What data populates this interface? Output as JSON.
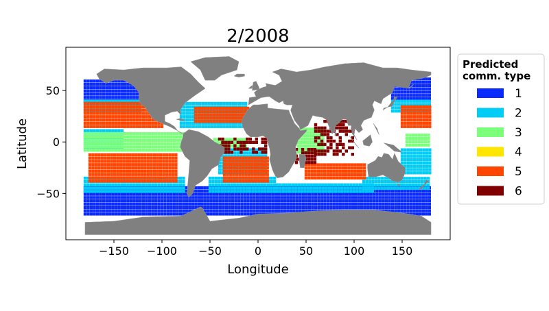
{
  "chart_data": {
    "type": "scatter",
    "title": "2/2008",
    "xlabel": "Longitude",
    "ylabel": "Latitude",
    "xlim": [
      -200,
      200
    ],
    "ylim": [
      -95,
      92
    ],
    "xticks": [
      -150,
      -100,
      -50,
      0,
      50,
      100,
      150
    ],
    "yticks": [
      -50,
      0,
      50
    ],
    "xtick_labels": [
      "−150",
      "−100",
      "−50",
      "0",
      "50",
      "100",
      "150"
    ],
    "ytick_labels": [
      "−50",
      "0",
      "50"
    ],
    "grid": false,
    "background_map": "world land masses in grey",
    "land_color": "#808080",
    "legend": {
      "title_line1": "Predicted",
      "title_line2": "comm. type",
      "placement": "outside-right-top",
      "entries": [
        {
          "label": "1",
          "color": "#0a2bff"
        },
        {
          "label": "2",
          "color": "#00ccf5"
        },
        {
          "label": "3",
          "color": "#7cff7a"
        },
        {
          "label": "4",
          "color": "#ffe600"
        },
        {
          "label": "5",
          "color": "#ff4500"
        },
        {
          "label": "6",
          "color": "#800000"
        }
      ]
    },
    "regions": [
      {
        "type": "1",
        "lon": [
          -180,
          180
        ],
        "lat": [
          -70,
          -42
        ]
      },
      {
        "type": "1",
        "lon": [
          -180,
          -125
        ],
        "lat": [
          40,
          62
        ]
      },
      {
        "type": "1",
        "lon": [
          140,
          180
        ],
        "lat": [
          42,
          62
        ]
      },
      {
        "type": "2",
        "lon": [
          -180,
          -75
        ],
        "lat": [
          -48,
          -35
        ]
      },
      {
        "type": "2",
        "lon": [
          -50,
          20
        ],
        "lat": [
          -48,
          -35
        ]
      },
      {
        "type": "2",
        "lon": [
          20,
          120
        ],
        "lat": [
          -48,
          -40
        ]
      },
      {
        "type": "2",
        "lon": [
          110,
          180
        ],
        "lat": [
          -45,
          -35
        ]
      },
      {
        "type": "2",
        "lon": [
          -180,
          -120
        ],
        "lat": [
          30,
          42
        ]
      },
      {
        "type": "2",
        "lon": [
          140,
          180
        ],
        "lat": [
          30,
          42
        ]
      },
      {
        "type": "2",
        "lon": [
          -80,
          -10
        ],
        "lat": [
          15,
          40
        ]
      },
      {
        "type": "2",
        "lon": [
          -40,
          10
        ],
        "lat": [
          -30,
          -5
        ]
      },
      {
        "type": "2",
        "lon": [
          -180,
          -140
        ],
        "lat": [
          -5,
          12
        ]
      },
      {
        "type": "2",
        "lon": [
          150,
          180
        ],
        "lat": [
          -30,
          -5
        ]
      },
      {
        "type": "3",
        "lon": [
          -180,
          -75
        ],
        "lat": [
          -8,
          10
        ]
      },
      {
        "type": "3",
        "lon": [
          -45,
          -10
        ],
        "lat": [
          -4,
          5
        ]
      },
      {
        "type": "3",
        "lon": [
          155,
          180
        ],
        "lat": [
          -3,
          8
        ]
      },
      {
        "type": "3",
        "lon": [
          42,
          70
        ],
        "lat": [
          -10,
          15
        ]
      },
      {
        "type": "5",
        "lon": [
          -180,
          -100
        ],
        "lat": [
          15,
          38
        ]
      },
      {
        "type": "5",
        "lon": [
          150,
          180
        ],
        "lat": [
          15,
          35
        ]
      },
      {
        "type": "5",
        "lon": [
          -175,
          -85
        ],
        "lat": [
          -38,
          -12
        ]
      },
      {
        "type": "5",
        "lon": [
          -35,
          10
        ],
        "lat": [
          -38,
          -15
        ]
      },
      {
        "type": "5",
        "lon": [
          50,
          112
        ],
        "lat": [
          -35,
          -20
        ]
      },
      {
        "type": "5",
        "lon": [
          -65,
          -10
        ],
        "lat": [
          20,
          33
        ]
      },
      {
        "type": "6",
        "lon": [
          60,
          100
        ],
        "lat": [
          -12,
          22
        ]
      },
      {
        "type": "6",
        "lon": [
          40,
          60
        ],
        "lat": [
          -20,
          -5
        ]
      },
      {
        "type": "6",
        "lon": [
          -40,
          10
        ],
        "lat": [
          -10,
          5
        ]
      }
    ]
  }
}
